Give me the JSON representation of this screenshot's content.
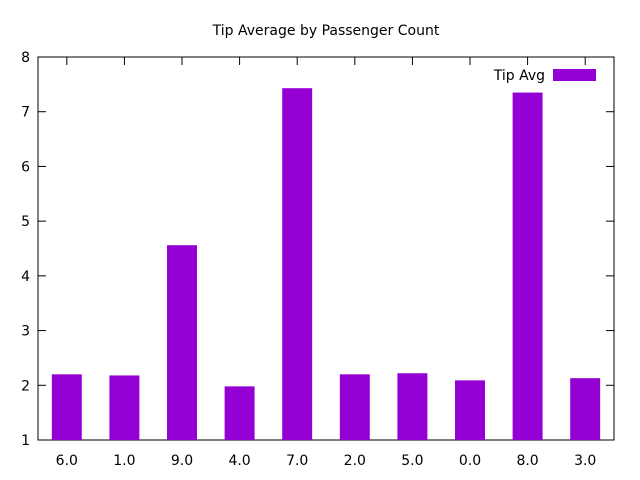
{
  "chart_data": {
    "type": "bar",
    "title": "Tip Average by Passenger Count",
    "xlabel": "",
    "ylabel": "",
    "categories": [
      "6.0",
      "1.0",
      "9.0",
      "4.0",
      "7.0",
      "2.0",
      "5.0",
      "0.0",
      "8.0",
      "3.0"
    ],
    "series": [
      {
        "name": "Tip Avg",
        "values": [
          2.2,
          2.18,
          4.56,
          1.98,
          7.43,
          2.2,
          2.22,
          2.09,
          7.35,
          2.13
        ]
      }
    ],
    "ylim": [
      1,
      8
    ],
    "yticks": [
      1,
      2,
      3,
      4,
      5,
      6,
      7,
      8
    ],
    "grid": false,
    "legend_position": "top-right",
    "colors": {
      "bar": "#9400D3",
      "axis": "#000000",
      "text": "#000000",
      "background": "#ffffff"
    }
  }
}
